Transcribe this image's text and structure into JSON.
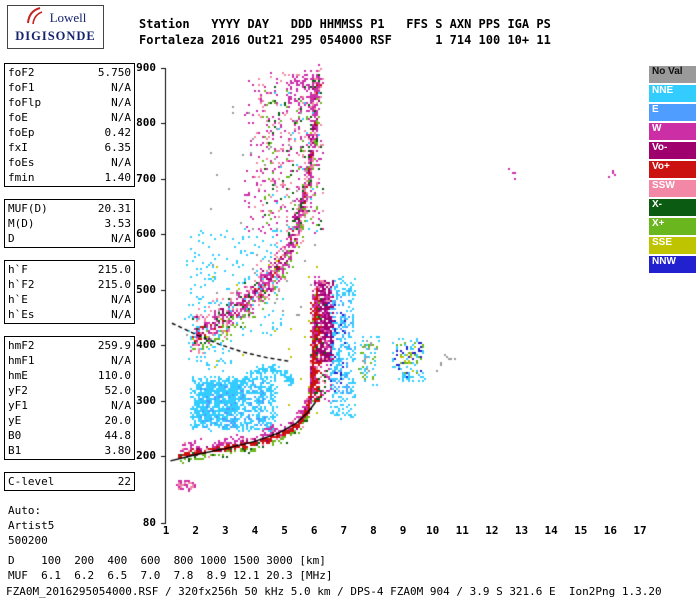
{
  "logo": {
    "name": "Lowell",
    "product": "DIGISONDE"
  },
  "header": {
    "line1": "Station   YYYY DAY   DDD HHMMSS P1   FFS S AXN PPS IGA PS",
    "line2": "Fortaleza 2016 Out21 295 054000 RSF      1 714 100 10+ 11"
  },
  "params": {
    "groups": [
      {
        "rows": [
          [
            "foF2",
            "5.750"
          ],
          [
            "foF1",
            "N/A"
          ],
          [
            "foFlp",
            "N/A"
          ],
          [
            "foE",
            "N/A"
          ],
          [
            "foEp",
            "0.42"
          ],
          [
            "fxI",
            "6.35"
          ],
          [
            "foEs",
            "N/A"
          ],
          [
            "fmin",
            "1.40"
          ]
        ]
      },
      {
        "rows": [
          [
            "MUF(D)",
            "20.31"
          ],
          [
            "M(D)",
            "3.53"
          ],
          [
            "D",
            "N/A"
          ]
        ]
      },
      {
        "rows": [
          [
            "h`F",
            "215.0"
          ],
          [
            "h`F2",
            "215.0"
          ],
          [
            "h`E",
            "N/A"
          ],
          [
            "h`Es",
            "N/A"
          ]
        ]
      },
      {
        "rows": [
          [
            "hmF2",
            "259.9"
          ],
          [
            "hmF1",
            "N/A"
          ],
          [
            "hmE",
            "110.0"
          ],
          [
            "yF2",
            "52.0"
          ],
          [
            "yF1",
            "N/A"
          ],
          [
            "yE",
            "20.0"
          ],
          [
            "B0",
            "44.8"
          ],
          [
            "B1",
            "3.80"
          ]
        ]
      },
      {
        "rows": [
          [
            "C-level",
            "22"
          ]
        ]
      }
    ],
    "footer": [
      "Auto:",
      "Artist5",
      "500200"
    ]
  },
  "legend": {
    "items": [
      {
        "label": "No Val",
        "color": "#9a9a9a",
        "text": "#111111"
      },
      {
        "label": "NNE",
        "color": "#33ccff",
        "text": "#ffffff"
      },
      {
        "label": "E",
        "color": "#4f9dff",
        "text": "#ffffff"
      },
      {
        "label": "W",
        "color": "#cc2ea6",
        "text": "#ffffff"
      },
      {
        "label": "Vo-",
        "color": "#a0006e",
        "text": "#ffffff"
      },
      {
        "label": "Vo+",
        "color": "#cc1111",
        "text": "#ffffff"
      },
      {
        "label": "SSW",
        "color": "#f288a5",
        "text": "#ffffff"
      },
      {
        "label": "X-",
        "color": "#0b5c12",
        "text": "#ffffff"
      },
      {
        "label": "X+",
        "color": "#6ab61e",
        "text": "#ffffff"
      },
      {
        "label": "SSE",
        "color": "#bfc400",
        "text": "#ffffff"
      },
      {
        "label": "NNW",
        "color": "#2121cf",
        "text": "#ffffff"
      }
    ]
  },
  "dmuf": {
    "rows": [
      {
        "label": "D",
        "values": [
          "100",
          "200",
          "400",
          "600",
          "800",
          "1000",
          "1500",
          "3000"
        ],
        "unit": "[km]"
      },
      {
        "label": "MUF",
        "values": [
          "6.1",
          "6.2",
          "6.5",
          "7.0",
          "7.8",
          "8.9",
          "12.1",
          "20.3"
        ],
        "unit": "[MHz]"
      }
    ]
  },
  "status_line": "FZA0M_2016295054000.RSF / 320fx256h 50 kHz 5.0 km / DPS-4 FZA0M 904 / 3.9 S 321.6 E  Ion2Png 1.3.20",
  "chart_data": {
    "type": "scatter",
    "title": "Digisonde ionogram, Fortaleza, 2016 day 295 054000",
    "xlabel": "[MHz]",
    "ylabel": "[km]",
    "xlim": [
      1,
      17
    ],
    "ylim": [
      80,
      900
    ],
    "x_ticks": [
      1,
      2,
      3,
      4,
      5,
      6,
      7,
      8,
      9,
      10,
      11,
      12,
      13,
      14,
      15,
      16,
      17
    ],
    "y_ticks": [
      900,
      800,
      700,
      600,
      500,
      400,
      300,
      200,
      80
    ],
    "grid": false,
    "legend_position": "right-outside",
    "colors": {
      "NoVal": "#9a9a9a",
      "NNE": "#33ccff",
      "E": "#4f9dff",
      "W": "#cc2ea6",
      "Vo-": "#a0006e",
      "Vo+": "#cc1111",
      "SSW": "#f288a5",
      "X-": "#0b5c12",
      "X+": "#6ab61e",
      "SSE": "#bfc400",
      "NNW": "#2121cf"
    },
    "paths": {
      "trace1": [
        [
          1.4,
          203
        ],
        [
          2.2,
          210
        ],
        [
          3.2,
          218
        ],
        [
          4.2,
          228
        ],
        [
          5.0,
          244
        ],
        [
          5.5,
          262
        ],
        [
          5.75,
          285
        ],
        [
          5.9,
          330
        ],
        [
          5.97,
          390
        ],
        [
          6.02,
          450
        ],
        [
          6.07,
          505
        ]
      ],
      "hop2": [
        [
          1.9,
          415
        ],
        [
          2.6,
          440
        ],
        [
          3.3,
          465
        ],
        [
          4.0,
          495
        ],
        [
          4.6,
          530
        ],
        [
          5.1,
          575
        ],
        [
          5.5,
          635
        ],
        [
          5.8,
          720
        ],
        [
          5.95,
          800
        ],
        [
          6.1,
          885
        ]
      ],
      "dome": [
        [
          3.3,
          328
        ],
        [
          3.9,
          350
        ],
        [
          4.5,
          360
        ],
        [
          5.0,
          350
        ],
        [
          5.3,
          333
        ]
      ]
    },
    "clusters": [
      {
        "c": "NoVal",
        "box": [
          2.4,
          6.0,
          450,
          870
        ],
        "n": 50
      },
      {
        "c": "NoVal",
        "path": "hop2",
        "n": 60,
        "jx": 0.2,
        "jy": 45
      },
      {
        "c": "SSE",
        "box": [
          2.5,
          6.3,
          250,
          560
        ],
        "n": 28
      },
      {
        "c": "NNE",
        "box": [
          1.6,
          4.9,
          420,
          610
        ],
        "n": 190
      },
      {
        "c": "NNE",
        "box": [
          1.7,
          3.2,
          355,
          430
        ],
        "n": 55
      },
      {
        "c": "NNE",
        "box": [
          1.8,
          4.7,
          248,
          345
        ],
        "n": 750
      },
      {
        "c": "NNE",
        "box": [
          2.0,
          3.4,
          266,
          336
        ],
        "n": 420
      },
      {
        "c": "E",
        "box": [
          2.1,
          4.3,
          256,
          336
        ],
        "n": 110
      },
      {
        "c": "NNE",
        "path": "dome",
        "n": 150,
        "jx": 0.08,
        "jy": 8
      },
      {
        "c": "NNE",
        "box": [
          6.5,
          7.35,
          270,
          525
        ],
        "n": 300
      },
      {
        "c": "E",
        "box": [
          6.6,
          7.2,
          300,
          500
        ],
        "n": 55
      },
      {
        "c": "NNW",
        "box": [
          6.4,
          7.1,
          310,
          480
        ],
        "n": 40
      },
      {
        "c": "NNE",
        "box": [
          4.5,
          6.2,
          600,
          860
        ],
        "n": 40
      },
      {
        "c": "SSE",
        "path": "hop2",
        "n": 22,
        "jx": 0.2,
        "jy": 35
      },
      {
        "c": "X-",
        "path": "hop2",
        "n": 130,
        "jx": 0.15,
        "jy": 30
      },
      {
        "c": "X+",
        "path": "hop2",
        "dy": -20,
        "n": 170,
        "jx": 0.15,
        "jy": 22
      },
      {
        "c": "SSW",
        "path": "hop2",
        "n": 240,
        "jx": 0.18,
        "jy": 40
      },
      {
        "c": "W",
        "path": "hop2",
        "n": 400,
        "jx": 0.15,
        "jy": 26
      },
      {
        "c": "Vo-",
        "path": "hop2",
        "n": 100,
        "jx": 0.12,
        "jy": 26
      },
      {
        "c": "Vo+",
        "path": "hop2",
        "n": 45,
        "jx": 0.1,
        "jy": 16
      },
      {
        "c": "W",
        "box": [
          3.6,
          6.3,
          600,
          895
        ],
        "n": 220
      },
      {
        "c": "SSW",
        "box": [
          3.9,
          6.3,
          630,
          895
        ],
        "n": 130
      },
      {
        "c": "X-",
        "box": [
          4.2,
          6.25,
          610,
          880
        ],
        "n": 60
      },
      {
        "c": "X+",
        "box": [
          4.2,
          6.2,
          620,
          880
        ],
        "n": 55
      },
      {
        "c": "W",
        "box": [
          5.0,
          6.15,
          820,
          898
        ],
        "n": 80
      },
      {
        "c": "NNE",
        "box": [
          7.5,
          8.15,
          330,
          420
        ],
        "n": 42
      },
      {
        "c": "X+",
        "box": [
          7.5,
          8.1,
          340,
          415
        ],
        "n": 22
      },
      {
        "c": "NoVal",
        "box": [
          7.6,
          8.1,
          350,
          410
        ],
        "n": 12
      },
      {
        "c": "NNE",
        "box": [
          8.6,
          9.75,
          335,
          415
        ],
        "n": 65
      },
      {
        "c": "NNW",
        "box": [
          8.7,
          9.6,
          345,
          405
        ],
        "n": 32
      },
      {
        "c": "X+",
        "box": [
          8.7,
          9.7,
          350,
          410
        ],
        "n": 22
      },
      {
        "c": "SSE",
        "box": [
          8.8,
          9.5,
          355,
          400
        ],
        "n": 10
      },
      {
        "c": "NoVal",
        "box": [
          9.9,
          10.9,
          350,
          385
        ],
        "n": 8
      },
      {
        "c": "W",
        "box": [
          12.5,
          12.75,
          698,
          722
        ],
        "n": 4
      },
      {
        "c": "W",
        "box": [
          15.9,
          16.15,
          698,
          718
        ],
        "n": 4
      },
      {
        "c": "W",
        "box": [
          1.35,
          1.95,
          140,
          158
        ],
        "n": 40
      },
      {
        "c": "SSW",
        "box": [
          1.4,
          1.9,
          142,
          156
        ],
        "n": 18
      },
      {
        "c": "X-",
        "box": [
          5.9,
          6.4,
          300,
          500
        ],
        "n": 60
      },
      {
        "c": "SSW",
        "box": [
          5.95,
          6.5,
          330,
          520
        ],
        "n": 80
      },
      {
        "c": "W",
        "box": [
          5.9,
          6.55,
          300,
          525
        ],
        "n": 200
      },
      {
        "c": "Vo-",
        "box": [
          6.05,
          6.6,
          370,
          520
        ],
        "n": 260
      },
      {
        "c": "Vo+",
        "box": [
          5.85,
          6.2,
          300,
          490
        ],
        "n": 130
      },
      {
        "c": "X-",
        "path": "trace1",
        "dy": -6,
        "n": 110,
        "jx": 0.08,
        "jy": 10
      },
      {
        "c": "X+",
        "path": "trace1",
        "dy": -8,
        "n": 150,
        "jx": 0.08,
        "jy": 7
      },
      {
        "c": "SSW",
        "path": "trace1",
        "dy": 6,
        "n": 100,
        "jx": 0.1,
        "jy": 14
      },
      {
        "c": "Vo-",
        "path": "trace1",
        "dy": 3,
        "n": 120,
        "jx": 0.07,
        "jy": 8
      },
      {
        "c": "W",
        "path": "trace1",
        "dy": 10,
        "n": 240,
        "jx": 0.09,
        "jy": 12
      },
      {
        "c": "Vo+",
        "path": "trace1",
        "n": 360,
        "jx": 0.05,
        "jy": 5
      }
    ],
    "model_lines": [
      {
        "name": "true-height-profile",
        "style": "solid",
        "pts": [
          [
            1.15,
            192
          ],
          [
            2.0,
            203
          ],
          [
            3.0,
            214
          ],
          [
            4.0,
            227
          ],
          [
            4.8,
            242
          ],
          [
            5.4,
            260
          ],
          [
            5.8,
            280
          ],
          [
            6.05,
            298
          ]
        ]
      },
      {
        "name": "extrapolated-profile",
        "style": "dashed",
        "pts": [
          [
            1.2,
            440
          ],
          [
            2.0,
            420
          ],
          [
            2.8,
            402
          ],
          [
            3.6,
            388
          ],
          [
            4.4,
            378
          ],
          [
            5.2,
            371
          ]
        ]
      }
    ]
  }
}
